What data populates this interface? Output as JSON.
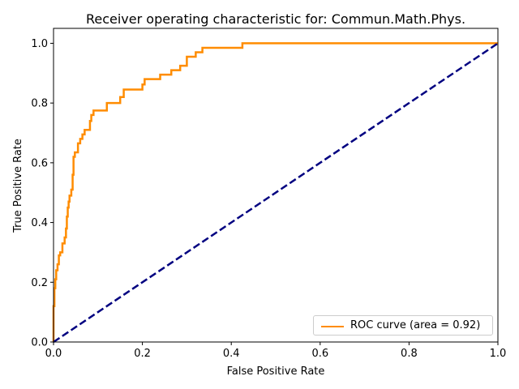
{
  "chart_data": {
    "type": "line",
    "title": "Receiver operating characteristic for: Commun.Math.Phys.",
    "xlabel": "False Positive Rate",
    "ylabel": "True Positive Rate",
    "xlim": [
      0.0,
      1.0
    ],
    "ylim": [
      0.0,
      1.05
    ],
    "x_ticks": [
      "0.0",
      "0.2",
      "0.4",
      "0.6",
      "0.8",
      "1.0"
    ],
    "y_ticks": [
      "0.0",
      "0.2",
      "0.4",
      "0.6",
      "0.8",
      "1.0"
    ],
    "grid": false,
    "legend_position": "lower right",
    "series": [
      {
        "name": "ROC curve (area = 0.92)",
        "color": "#ff8c00",
        "style": "solid",
        "x": [
          0.0,
          0.0,
          0.002,
          0.002,
          0.004,
          0.004,
          0.006,
          0.006,
          0.009,
          0.009,
          0.012,
          0.012,
          0.015,
          0.015,
          0.02,
          0.02,
          0.025,
          0.025,
          0.028,
          0.028,
          0.03,
          0.03,
          0.032,
          0.032,
          0.034,
          0.034,
          0.036,
          0.036,
          0.04,
          0.04,
          0.043,
          0.043,
          0.045,
          0.045,
          0.048,
          0.048,
          0.055,
          0.055,
          0.06,
          0.06,
          0.065,
          0.065,
          0.07,
          0.07,
          0.082,
          0.082,
          0.085,
          0.085,
          0.09,
          0.09,
          0.12,
          0.12,
          0.15,
          0.15,
          0.158,
          0.158,
          0.2,
          0.2,
          0.205,
          0.205,
          0.24,
          0.24,
          0.265,
          0.265,
          0.285,
          0.285,
          0.3,
          0.3,
          0.32,
          0.32,
          0.335,
          0.335,
          0.425,
          0.425,
          0.443,
          0.443,
          1.0
        ],
        "y": [
          0.0,
          0.12,
          0.12,
          0.18,
          0.18,
          0.21,
          0.21,
          0.24,
          0.24,
          0.26,
          0.26,
          0.29,
          0.29,
          0.3,
          0.3,
          0.33,
          0.33,
          0.35,
          0.35,
          0.38,
          0.38,
          0.42,
          0.42,
          0.45,
          0.45,
          0.47,
          0.47,
          0.49,
          0.49,
          0.51,
          0.51,
          0.56,
          0.56,
          0.62,
          0.62,
          0.635,
          0.635,
          0.665,
          0.665,
          0.68,
          0.68,
          0.695,
          0.695,
          0.71,
          0.71,
          0.74,
          0.74,
          0.76,
          0.76,
          0.775,
          0.775,
          0.8,
          0.8,
          0.82,
          0.82,
          0.845,
          0.845,
          0.862,
          0.862,
          0.88,
          0.88,
          0.895,
          0.895,
          0.91,
          0.91,
          0.925,
          0.925,
          0.955,
          0.955,
          0.97,
          0.97,
          0.985,
          0.985,
          1.0,
          1.0,
          1.0,
          1.0
        ]
      },
      {
        "name": "",
        "color": "#000080",
        "style": "dashed",
        "x": [
          0.0,
          1.0
        ],
        "y": [
          0.0,
          1.0
        ]
      }
    ]
  }
}
